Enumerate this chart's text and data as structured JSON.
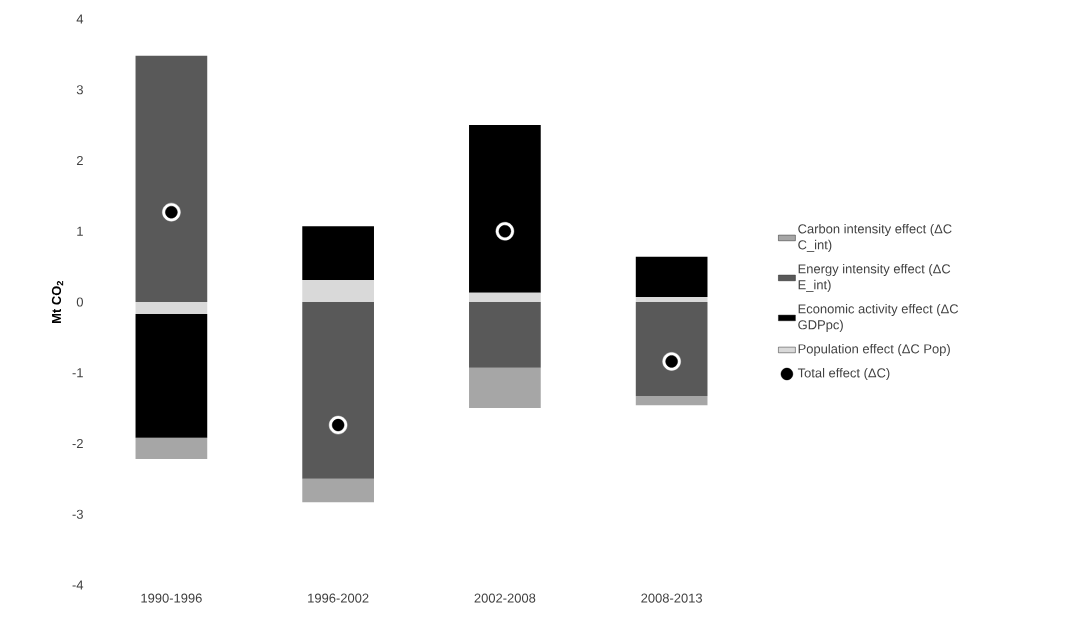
{
  "chart_data": {
    "type": "bar",
    "ylabel": "Mt CO$_{2}$",
    "categories": [
      "1990-1996",
      "1996-2002",
      "2002-2008",
      "2008-2013"
    ],
    "series": [
      {
        "name": "Carbon intensity effect (ΔC C_int)",
        "color": "#a6a6a6",
        "values": [
          -0.3,
          -0.33,
          -0.57,
          -0.13
        ],
        "base": [
          -1.92,
          -2.5,
          -0.93,
          -1.33
        ]
      },
      {
        "name": "Energy intensity effect (ΔC E_int)",
        "color": "#595959",
        "values": [
          3.48,
          -2.5,
          -0.93,
          -1.33
        ],
        "base": [
          0,
          0,
          0,
          0
        ]
      },
      {
        "name": "Economic activity effect (ΔC GDPpc)",
        "color": "#000000",
        "values": [
          -1.75,
          0.76,
          2.37,
          0.57
        ],
        "base": [
          -0.17,
          0.31,
          0.13,
          0.07
        ]
      },
      {
        "name": "Population effect (ΔC Pop)",
        "color": "#d9d9d9",
        "values": [
          -0.17,
          0.31,
          0.13,
          0.07
        ],
        "base": [
          0,
          0,
          0,
          0
        ]
      },
      {
        "name": "Total effect (ΔC)",
        "type": "scatter",
        "marker": "circle",
        "color": "#000000",
        "x": [
          "1990-1996",
          "1996-2002",
          "2002-2008",
          "2008-2013"
        ],
        "values": [
          1.27,
          -1.74,
          1.0,
          -0.84
        ]
      }
    ],
    "ylim": [
      -4,
      4
    ],
    "yticks": [
      -4,
      -3,
      -2,
      -1,
      0,
      1,
      2,
      3,
      4
    ],
    "legend": "right"
  }
}
